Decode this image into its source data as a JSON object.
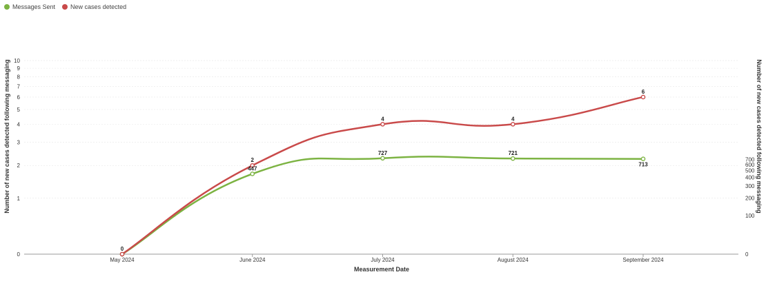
{
  "chart_data": {
    "type": "line",
    "categories": [
      "May 2024",
      "June 2024",
      "July 2024",
      "August 2024",
      "September 2024"
    ],
    "series": [
      {
        "name": "Messages Sent",
        "axis": "right",
        "color": "#7cb342",
        "values": [
          0,
          447,
          727,
          721,
          713
        ]
      },
      {
        "name": "New cases detected",
        "axis": "left",
        "color": "#c94a4a",
        "values": [
          0,
          2,
          4,
          4,
          6
        ]
      }
    ],
    "xlabel": "Measurement Date",
    "ylabel_left": "Number of new cases detected following messaging",
    "ylabel_right": "Number of new cases detected following messaging",
    "left_axis": {
      "scale": "log1p",
      "ticks": [
        "0",
        "1",
        "2",
        "3",
        "4",
        "5",
        "6",
        "7",
        "8",
        "9",
        "10"
      ]
    },
    "right_axis": {
      "scale": "log1p",
      "ticks": [
        "0",
        "100",
        "200",
        "300",
        "400",
        "500",
        "600",
        "700"
      ]
    },
    "grid": true,
    "legend_position": "top-left",
    "curve": "smooth"
  }
}
